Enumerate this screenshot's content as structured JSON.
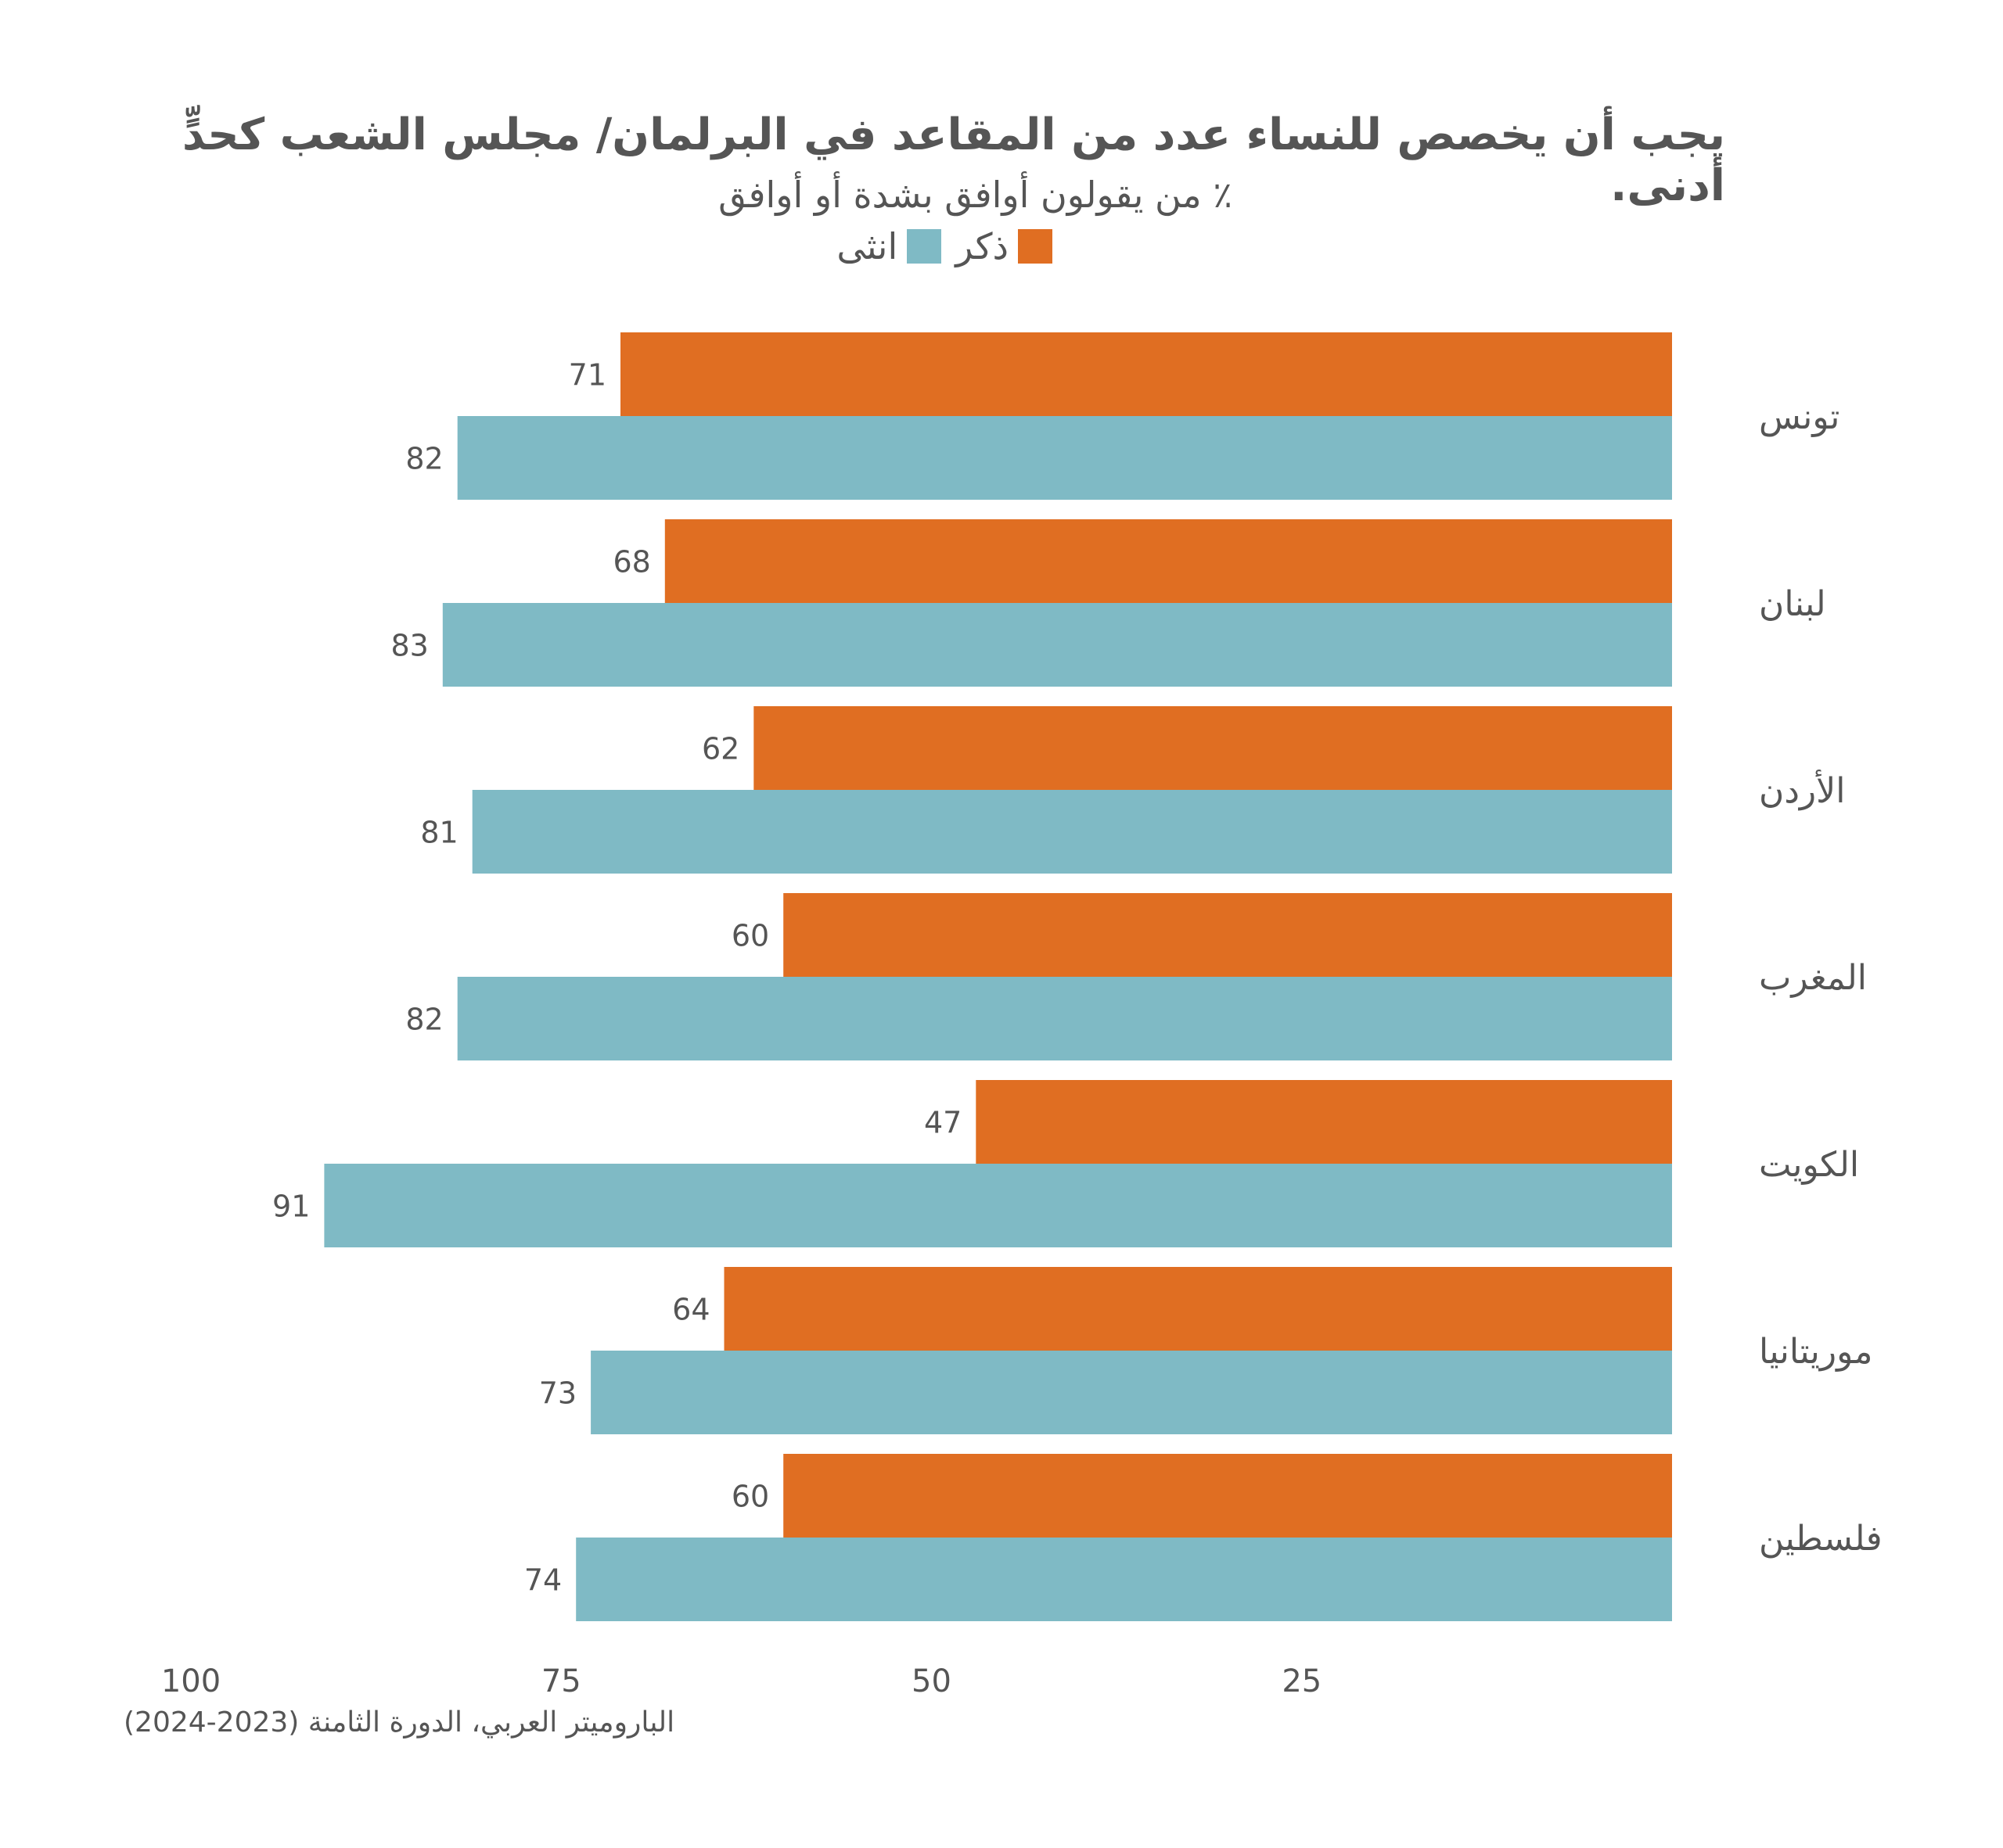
{
  "title": "يجب أن يخصص للنساء عدد من المقاعد في البرلمان/ مجلس الشعب كحدٍّ أدنى.",
  "subtitle": "٪ من يقولون أوافق بشدة أو أوافق",
  "source": "الباروميتر العربي، الدورة الثامنة (2023-2024)",
  "colors": {
    "male": "#E06E22",
    "female": "#7FBAC5",
    "text": "#555555"
  },
  "chart_data": {
    "type": "bar",
    "orientation": "horizontal",
    "direction": "right-to-left",
    "categories": [
      "تونس",
      "لبنان",
      "الأردن",
      "المغرب",
      "الكويت",
      "موريتانيا",
      "فلسطين"
    ],
    "series": [
      {
        "name": "ذكر",
        "color": "#E06E22",
        "values": [
          71,
          68,
          62,
          60,
          47,
          64,
          60
        ]
      },
      {
        "name": "انثى",
        "color": "#7FBAC5",
        "values": [
          82,
          83,
          81,
          82,
          91,
          73,
          74
        ]
      }
    ],
    "x_ticks": [
      "100",
      "75",
      "50",
      "25"
    ],
    "x_tick_values": [
      100,
      75,
      50,
      25
    ],
    "xlim": [
      0,
      100
    ],
    "grid": false,
    "legend_position": "top"
  }
}
